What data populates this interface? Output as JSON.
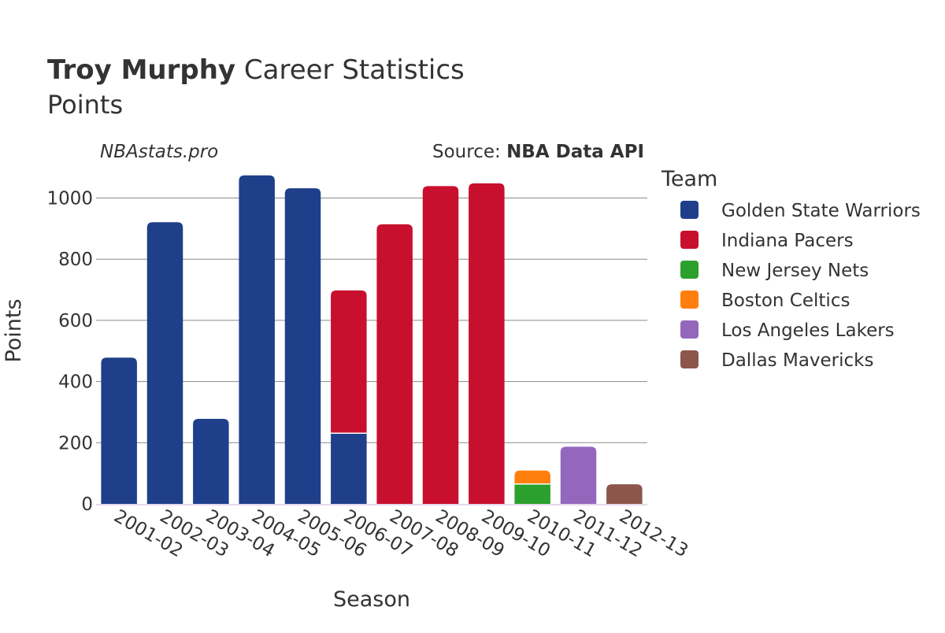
{
  "chart_data": {
    "type": "bar",
    "stacked": true,
    "title_bold": "Troy Murphy",
    "title_rest": " Career Statistics",
    "subtitle": "Points",
    "watermark": "NBAstats.pro",
    "source_prefix": "Source: ",
    "source_name": "NBA Data API",
    "xlabel": "Season",
    "ylabel": "Points",
    "legend_title": "Team",
    "legend_position": "right",
    "grid": true,
    "ylim": [
      0,
      1100
    ],
    "yticks": [
      0,
      200,
      400,
      600,
      800,
      1000
    ],
    "categories": [
      "2001-02",
      "2002-03",
      "2003-04",
      "2004-05",
      "2005-06",
      "2006-07",
      "2007-08",
      "2008-09",
      "2009-10",
      "2010-11",
      "2011-12",
      "2012-13"
    ],
    "series": [
      {
        "name": "Golden State Warriors",
        "color": "#1f3f8a",
        "values": [
          478,
          921,
          278,
          1074,
          1032,
          231,
          0,
          0,
          0,
          0,
          0,
          0
        ]
      },
      {
        "name": "Indiana Pacers",
        "color": "#c8102e",
        "values": [
          0,
          0,
          0,
          0,
          0,
          467,
          914,
          1039,
          1048,
          0,
          0,
          0
        ]
      },
      {
        "name": "New Jersey Nets",
        "color": "#2ca02c",
        "values": [
          0,
          0,
          0,
          0,
          0,
          0,
          0,
          0,
          0,
          65,
          0,
          0
        ]
      },
      {
        "name": "Boston Celtics",
        "color": "#ff7f0e",
        "values": [
          0,
          0,
          0,
          0,
          0,
          0,
          0,
          0,
          0,
          44,
          0,
          0
        ]
      },
      {
        "name": "Los Angeles Lakers",
        "color": "#9467bd",
        "values": [
          0,
          0,
          0,
          0,
          0,
          0,
          0,
          0,
          0,
          0,
          187,
          0
        ]
      },
      {
        "name": "Dallas Mavericks",
        "color": "#8c564b",
        "values": [
          0,
          0,
          0,
          0,
          0,
          0,
          0,
          0,
          0,
          0,
          0,
          64
        ]
      }
    ]
  }
}
